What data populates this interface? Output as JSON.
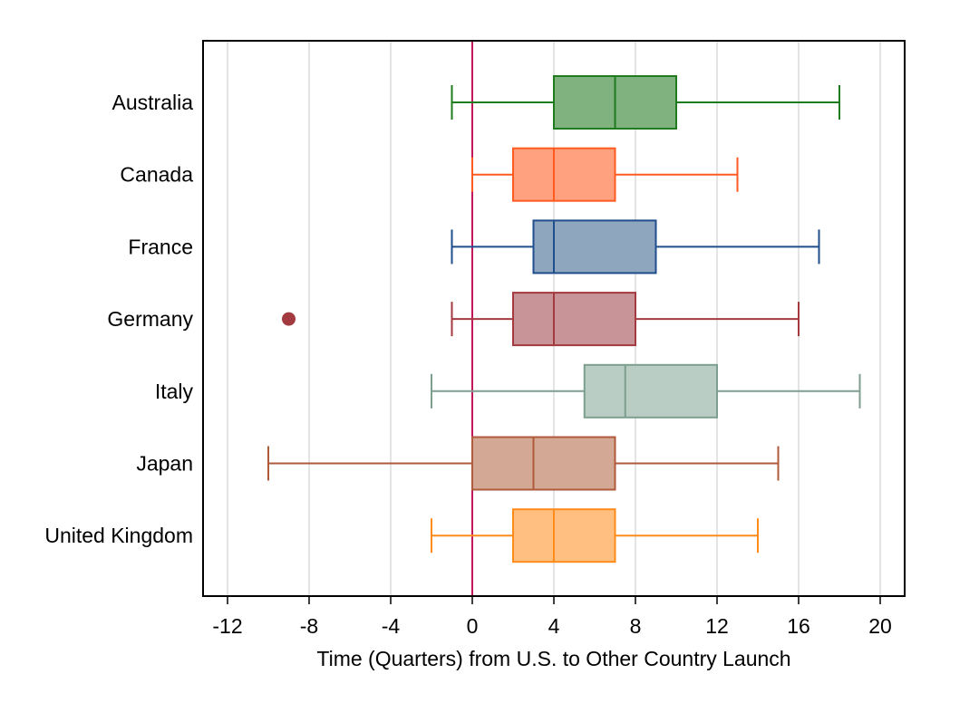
{
  "chart_data": {
    "type": "box",
    "orientation": "horizontal",
    "title": "",
    "xlabel": "Time (Quarters) from U.S. to Other Country Launch",
    "ylabel": "",
    "xlim": [
      -13,
      21
    ],
    "xticks": [
      -12,
      -8,
      -4,
      0,
      4,
      8,
      12,
      16,
      20
    ],
    "xtick_labels": [
      "-12",
      "-8",
      "-4",
      "0",
      "4",
      "8",
      "12",
      "16",
      "20"
    ],
    "grid": true,
    "reference_line": {
      "x": 0,
      "color": "#c2185b"
    },
    "categories": [
      "Australia",
      "Canada",
      "France",
      "Germany",
      "Italy",
      "Japan",
      "United Kingdom"
    ],
    "boxes": [
      {
        "name": "Australia",
        "min": -1,
        "q1": 4,
        "median": 7,
        "q3": 10,
        "max": 18,
        "outliers": [],
        "color": "#1e7b1e",
        "fill": "#7fb27f"
      },
      {
        "name": "Canada",
        "min": 0,
        "q1": 2,
        "median": 4,
        "q3": 7,
        "max": 13,
        "outliers": [],
        "color": "#ff5a1f",
        "fill": "#ffa07f"
      },
      {
        "name": "France",
        "min": -1,
        "q1": 3,
        "median": 4,
        "q3": 9,
        "max": 17,
        "outliers": [],
        "color": "#1f4e8c",
        "fill": "#8fa6bf"
      },
      {
        "name": "Germany",
        "min": -1,
        "q1": 2,
        "median": 4,
        "q3": 8,
        "max": 16,
        "outliers": [
          -9
        ],
        "color": "#a33a3f",
        "fill": "#c99497"
      },
      {
        "name": "Italy",
        "min": -2,
        "q1": 5.5,
        "median": 7.5,
        "q3": 12,
        "max": 19,
        "outliers": [],
        "color": "#7e9e8f",
        "fill": "#b9cdc4"
      },
      {
        "name": "Japan",
        "min": -10,
        "q1": 0,
        "median": 3,
        "q3": 7,
        "max": 15,
        "outliers": [],
        "color": "#b05a3c",
        "fill": "#d3a995"
      },
      {
        "name": "United Kingdom",
        "min": -2,
        "q1": 2,
        "median": 4,
        "q3": 7,
        "max": 14,
        "outliers": [],
        "color": "#ff8c1a",
        "fill": "#ffbf80"
      }
    ]
  }
}
